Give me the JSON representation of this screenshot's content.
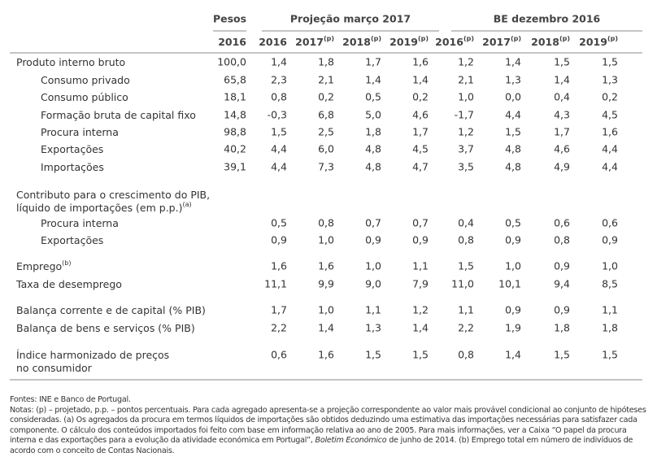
{
  "table": {
    "groups": [
      "Pesos",
      "Projeção março 2017",
      "BE dezembro 2016"
    ],
    "columns": [
      {
        "text": "2016"
      },
      {
        "text": "2016"
      },
      {
        "text": "2017",
        "sup": "(p)"
      },
      {
        "text": "2018",
        "sup": "(p)"
      },
      {
        "text": "2019",
        "sup": "(p)"
      },
      {
        "text": "2016",
        "sup": "(p)"
      },
      {
        "text": "2017",
        "sup": "(p)"
      },
      {
        "text": "2018",
        "sup": "(p)"
      },
      {
        "text": "2019",
        "sup": "(p)"
      }
    ],
    "rows": [
      {
        "label": [
          "Produto interno bruto"
        ],
        "level": 0,
        "cells": [
          "100,0",
          "1,4",
          "1,8",
          "1,7",
          "1,6",
          "1,2",
          "1,4",
          "1,5",
          "1,5"
        ]
      },
      {
        "label": [
          "Consumo privado"
        ],
        "level": 1,
        "cells": [
          "65,8",
          "2,3",
          "2,1",
          "1,4",
          "1,4",
          "2,1",
          "1,3",
          "1,4",
          "1,3"
        ]
      },
      {
        "label": [
          "Consumo público"
        ],
        "level": 1,
        "cells": [
          "18,1",
          "0,8",
          "0,2",
          "0,5",
          "0,2",
          "1,0",
          "0,0",
          "0,4",
          "0,2"
        ]
      },
      {
        "label": [
          "Formação bruta de capital fixo"
        ],
        "level": 1,
        "cells": [
          "14,8",
          "-0,3",
          "6,8",
          "5,0",
          "4,6",
          "-1,7",
          "4,4",
          "4,3",
          "4,5"
        ]
      },
      {
        "label": [
          "Procura interna"
        ],
        "level": 1,
        "cells": [
          "98,8",
          "1,5",
          "2,5",
          "1,8",
          "1,7",
          "1,2",
          "1,5",
          "1,7",
          "1,6"
        ]
      },
      {
        "label": [
          "Exportações"
        ],
        "level": 1,
        "cells": [
          "40,2",
          "4,4",
          "6,0",
          "4,8",
          "4,5",
          "3,7",
          "4,8",
          "4,6",
          "4,4"
        ]
      },
      {
        "label": [
          "Importações"
        ],
        "level": 1,
        "cells": [
          "39,1",
          "4,4",
          "7,3",
          "4,8",
          "4,7",
          "3,5",
          "4,8",
          "4,9",
          "4,4"
        ]
      },
      {
        "label": [
          "Contributo para o crescimento do PIB,",
          "líquido de importações (em p.p.)"
        ],
        "sup": "(a)",
        "level": 0,
        "cells": [
          null,
          null,
          null,
          null,
          null,
          null,
          null,
          null,
          null
        ]
      },
      {
        "label": [
          "Procura interna"
        ],
        "level": 1,
        "cells": [
          null,
          "0,5",
          "0,8",
          "0,7",
          "0,7",
          "0,4",
          "0,5",
          "0,6",
          "0,6"
        ]
      },
      {
        "label": [
          "Exportações"
        ],
        "level": 1,
        "cells": [
          null,
          "0,9",
          "1,0",
          "0,9",
          "0,9",
          "0,8",
          "0,9",
          "0,8",
          "0,9"
        ]
      },
      {
        "label": [
          "Emprego"
        ],
        "sup": "(b)",
        "level": 0,
        "cells": [
          null,
          "1,6",
          "1,6",
          "1,0",
          "1,1",
          "1,5",
          "1,0",
          "0,9",
          "1,0"
        ]
      },
      {
        "label": [
          "Taxa de desemprego"
        ],
        "level": 0,
        "cells": [
          null,
          "11,1",
          "9,9",
          "9,0",
          "7,9",
          "11,0",
          "10,1",
          "9,4",
          "8,5"
        ]
      },
      {
        "label": [
          "Balança corrente e de capital (% PIB)"
        ],
        "level": 0,
        "cells": [
          null,
          "1,7",
          "1,0",
          "1,1",
          "1,2",
          "1,1",
          "0,9",
          "0,9",
          "1,1"
        ]
      },
      {
        "label": [
          "Balança de bens e serviços (% PIB)"
        ],
        "level": 0,
        "cells": [
          null,
          "2,2",
          "1,4",
          "1,3",
          "1,4",
          "2,2",
          "1,9",
          "1,8",
          "1,8"
        ]
      },
      {
        "label": [
          "Índice harmonizado de preços",
          "no consumidor"
        ],
        "level": 0,
        "cells": [
          null,
          "0,6",
          "1,6",
          "1,5",
          "1,5",
          "0,8",
          "1,4",
          "1,5",
          "1,5"
        ]
      }
    ]
  },
  "notes": {
    "sources": "Fontes: INE e Banco de Portugal.",
    "text": [
      {
        "t": "Notas: (p) – projetado, p.p. – pontos percentuais. Para cada agregado apresenta-se a projeção correspondente ao valor mais provável condicional ao conjunto de hipóteses consideradas. (a) Os agregados da procura em termos líquidos de importações são obtidos deduzindo uma estimativa das importações necessárias para satisfazer cada componente. O cálculo dos conteúdos importados foi feito com base em informação relativa ao ano de 2005. Para mais informações, ver a Caixa “O papel da procura interna e das exportações para a evolução da atividade económica em Portugal”, "
      },
      {
        "t": "Boletim Económico",
        "italic": true
      },
      {
        "t": " de junho de 2014. (b) Emprego total em número de indivíduos de acordo com o conceito de Contas Nacionais."
      }
    ]
  }
}
